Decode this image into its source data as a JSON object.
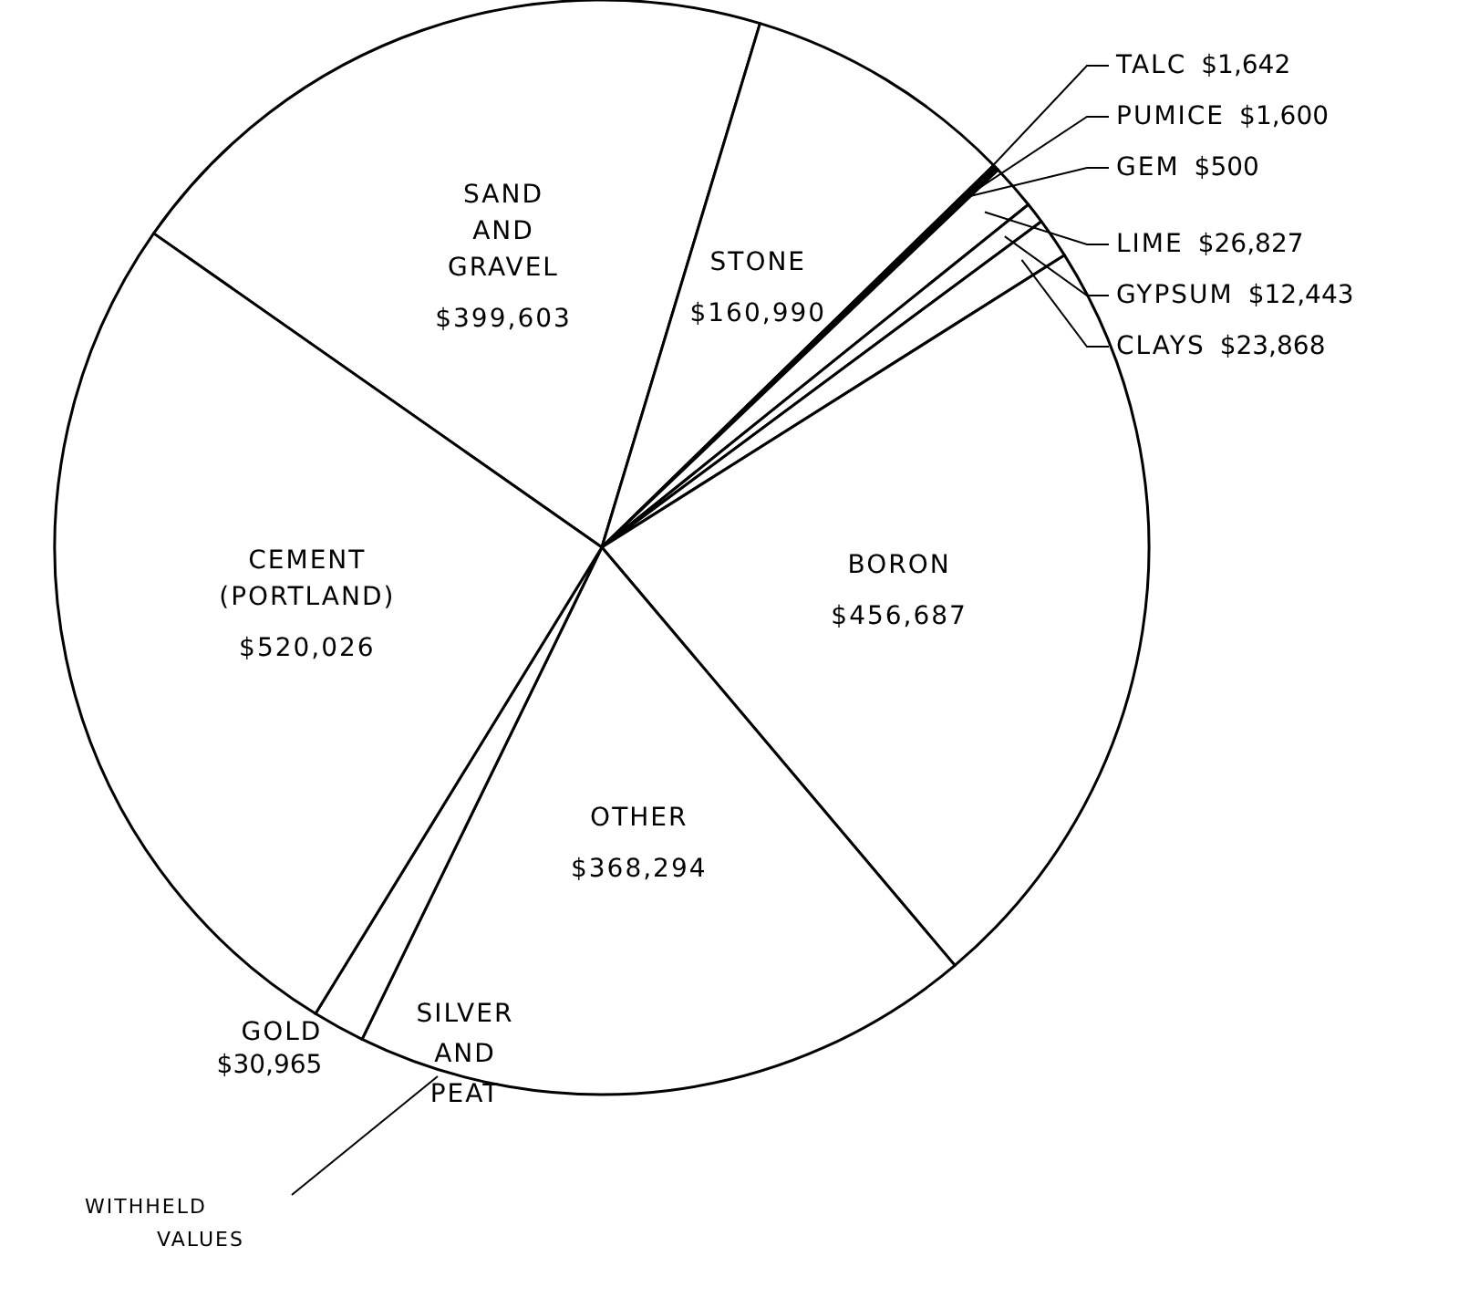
{
  "chart_data": {
    "type": "pie",
    "categories": [
      "SAND AND GRAVEL",
      "STONE",
      "TALC",
      "PUMICE",
      "GEM",
      "LIME",
      "GYPSUM",
      "CLAYS",
      "BORON",
      "OTHER",
      "GOLD",
      "CEMENT (PORTLAND)"
    ],
    "values": [
      399603,
      160990,
      1642,
      1600,
      500,
      26827,
      12443,
      23868,
      456687,
      368294,
      30965,
      520026
    ],
    "value_labels": [
      "$399,603",
      "$160,990",
      "$1,642",
      "$1,600",
      "$500",
      "$26,827",
      "$12,443",
      "$23,868",
      "$456,687",
      "$368,294",
      "$30,965",
      "$520,026"
    ],
    "colors": [
      "#ffffff",
      "#ffffff",
      "#ffffff",
      "#ffffff",
      "#ffffff",
      "#ffffff",
      "#ffffff",
      "#ffffff",
      "#ffffff",
      "#ffffff",
      "#ffffff",
      "#ffffff"
    ],
    "annotations": [
      "SILVER AND PEAT",
      "WITHHELD VALUES"
    ]
  }
}
